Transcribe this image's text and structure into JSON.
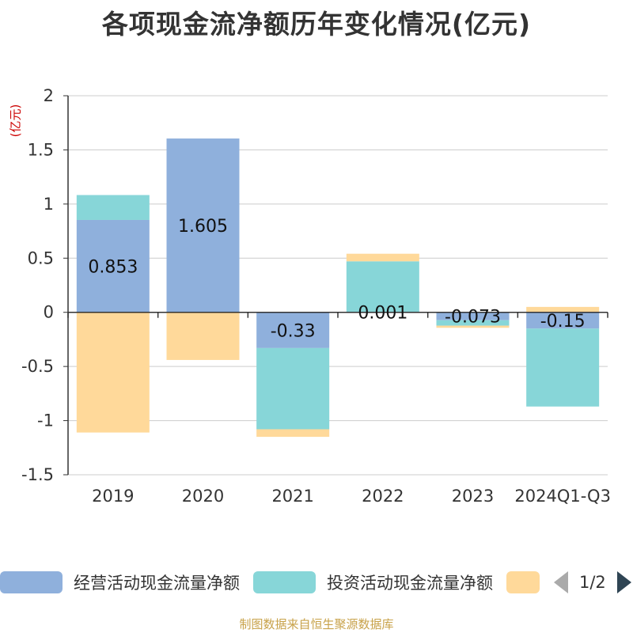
{
  "title": "各项现金流净额历年变化情况(亿元)",
  "source": "制图数据来自恒生聚源数据库",
  "legend": {
    "items": [
      {
        "label": "经营活动现金流量净额",
        "color": "#8fb0dc"
      },
      {
        "label": "投资活动现金流量净额",
        "color": "#87d6d8"
      },
      {
        "label": "",
        "color": "#ffd99a"
      }
    ],
    "page": "1/2"
  },
  "chart_data": {
    "type": "bar",
    "stacked": true,
    "ylabel": "(亿元)",
    "ylim": [
      -1.5,
      2
    ],
    "yticks": [
      2,
      1.5,
      1,
      0.5,
      0,
      -0.5,
      -1,
      -1.5
    ],
    "ytick_labels": [
      "2",
      "1.5",
      "1",
      "0.5",
      "0",
      "-0.5",
      "-1",
      "-1.5"
    ],
    "categories": [
      "2019",
      "2020",
      "2021",
      "2022",
      "2023",
      "2024Q1-Q3"
    ],
    "series": [
      {
        "name": "经营活动现金流量净额",
        "color": "#8fb0dc",
        "values": [
          0.853,
          1.605,
          -0.33,
          0.001,
          -0.073,
          -0.15
        ],
        "labels": [
          "0.853",
          "1.605",
          "-0.33",
          "0.001",
          "-0.073",
          "-0.15"
        ]
      },
      {
        "name": "投资活动现金流量净额",
        "color": "#87d6d8",
        "values": [
          0.23,
          0.0,
          -0.75,
          0.47,
          -0.05,
          -0.72
        ]
      },
      {
        "name": "",
        "color": "#ffd99a",
        "values": [
          -1.11,
          -0.44,
          -0.07,
          0.07,
          -0.02,
          0.05
        ]
      }
    ]
  }
}
